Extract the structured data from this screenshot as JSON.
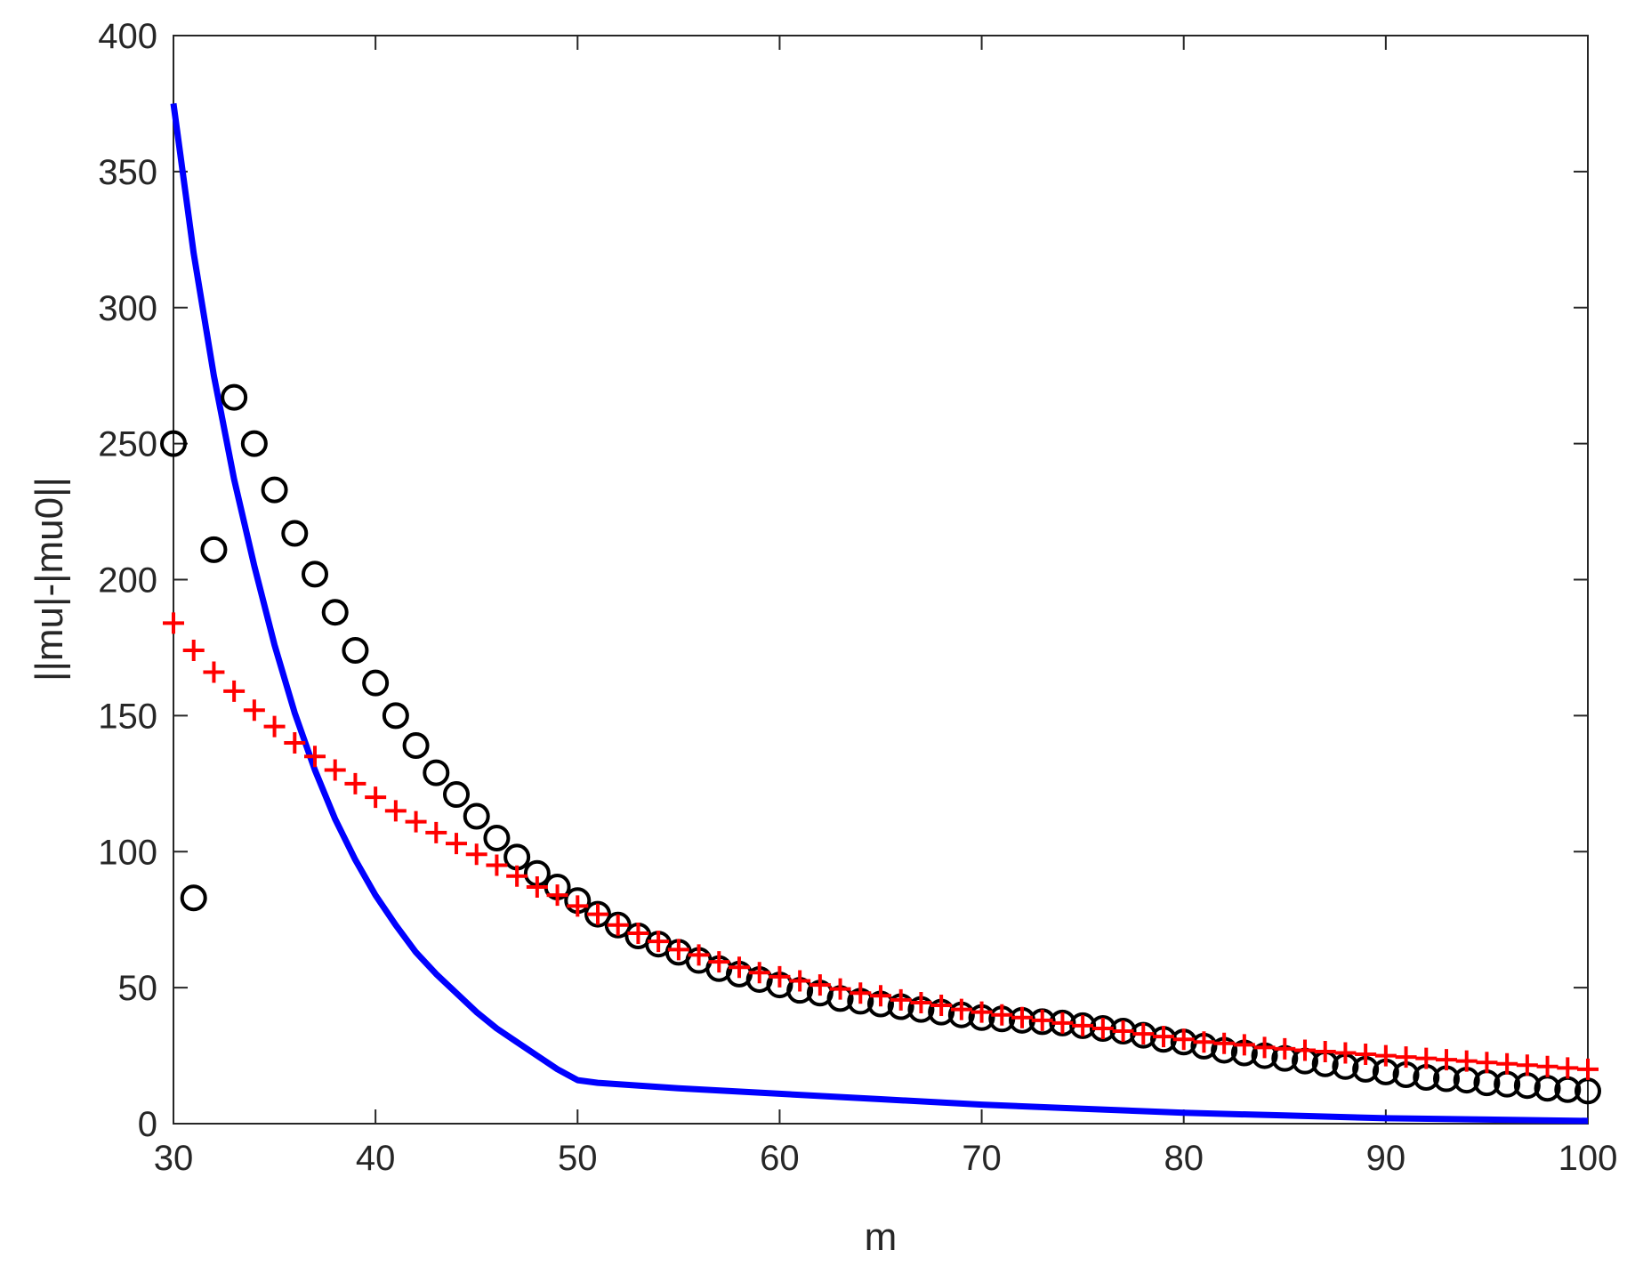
{
  "chart_data": {
    "type": "line",
    "title": "",
    "xlabel": "m",
    "ylabel": "||mu|-|mu0||",
    "xlim": [
      30,
      100
    ],
    "ylim": [
      0,
      400
    ],
    "xticks": [
      30,
      40,
      50,
      60,
      70,
      80,
      90,
      100
    ],
    "yticks": [
      0,
      50,
      100,
      150,
      200,
      250,
      300,
      350,
      400
    ],
    "grid": false,
    "legend": "none",
    "series": [
      {
        "style": "line",
        "color": "#0000ff",
        "x": [
          30,
          31,
          32,
          33,
          34,
          35,
          36,
          37,
          38,
          39,
          40,
          41,
          42,
          43,
          44,
          45,
          46,
          47,
          48,
          49,
          50,
          51,
          55,
          60,
          65,
          70,
          75,
          80,
          85,
          90,
          95,
          100
        ],
        "y": [
          375,
          320,
          275,
          237,
          205,
          176,
          151,
          130,
          112,
          97,
          84,
          73,
          63,
          55,
          48,
          41,
          35,
          30,
          25,
          20,
          16,
          15,
          13,
          11,
          9,
          7,
          5.5,
          4,
          3,
          2,
          1.5,
          1
        ]
      },
      {
        "style": "marker-o",
        "color": "#000000",
        "x": [
          30,
          31,
          32,
          33,
          34,
          35,
          36,
          37,
          38,
          39,
          40,
          41,
          42,
          43,
          44,
          45,
          46,
          47,
          48,
          49,
          50,
          51,
          52,
          53,
          54,
          55,
          56,
          57,
          58,
          59,
          60,
          61,
          62,
          63,
          64,
          65,
          66,
          67,
          68,
          69,
          70,
          71,
          72,
          73,
          74,
          75,
          76,
          77,
          78,
          79,
          80,
          81,
          82,
          83,
          84,
          85,
          86,
          87,
          88,
          89,
          90,
          91,
          92,
          93,
          94,
          95,
          96,
          97,
          98,
          99,
          100
        ],
        "y": [
          250,
          83,
          211,
          267,
          250,
          233,
          217,
          202,
          188,
          174,
          162,
          150,
          139,
          129,
          121,
          113,
          105,
          98,
          92,
          87,
          82,
          77,
          73,
          69,
          66,
          63,
          60,
          57,
          55,
          53,
          51,
          49,
          48,
          46,
          45,
          44,
          43,
          42,
          41,
          40,
          39,
          38.5,
          38,
          37.5,
          37,
          36,
          35,
          34,
          32.5,
          31,
          30,
          28.5,
          27,
          26,
          25,
          24,
          23,
          22,
          21,
          20,
          19,
          18,
          17,
          16.5,
          16,
          15,
          14.5,
          14,
          13,
          12.5,
          12
        ]
      },
      {
        "style": "marker-plus",
        "color": "#ff0000",
        "x": [
          30,
          31,
          32,
          33,
          34,
          35,
          36,
          37,
          38,
          39,
          40,
          41,
          42,
          43,
          44,
          45,
          46,
          47,
          48,
          49,
          50,
          51,
          52,
          53,
          54,
          55,
          56,
          57,
          58,
          59,
          60,
          61,
          62,
          63,
          64,
          65,
          66,
          67,
          68,
          69,
          70,
          71,
          72,
          73,
          74,
          75,
          76,
          77,
          78,
          79,
          80,
          81,
          82,
          83,
          84,
          85,
          86,
          87,
          88,
          89,
          90,
          91,
          92,
          93,
          94,
          95,
          96,
          97,
          98,
          99,
          100
        ],
        "y": [
          184,
          174,
          166,
          159,
          152,
          146,
          140,
          135,
          130,
          125,
          120,
          115,
          111,
          107,
          103,
          99,
          95,
          91,
          87,
          84,
          80,
          77,
          73,
          70,
          67,
          64,
          62,
          59.5,
          57.5,
          55.5,
          54,
          52.5,
          51,
          49.5,
          48,
          47,
          45.5,
          44.5,
          43.5,
          42,
          41,
          40,
          39,
          38,
          37,
          36,
          35,
          34,
          33,
          32,
          31,
          30,
          29.5,
          29,
          28,
          27.5,
          27,
          26.5,
          26,
          25.5,
          25,
          24.5,
          24,
          23.5,
          23,
          22.5,
          22,
          21.5,
          21,
          20.5,
          20
        ]
      }
    ]
  }
}
